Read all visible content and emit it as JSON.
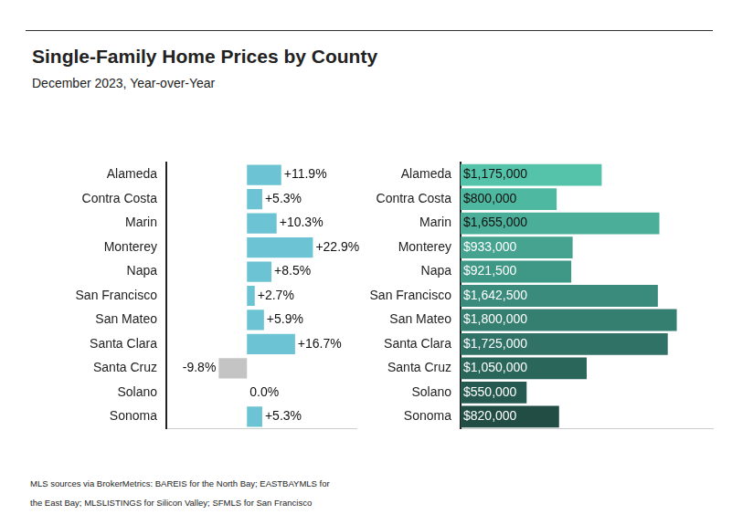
{
  "title": "Single-Family Home Prices by County",
  "subtitle": "December 2023, Year-over-Year",
  "source": "MLS sources via BrokerMetrics: BAREIS for the North Bay; EASTBAYMLS for the East Bay; MLSLISTINGS for Silicon Valley; SFMLS for San Francisco",
  "chart_data": [
    {
      "type": "bar",
      "orientation": "horizontal",
      "categories": [
        "Alameda",
        "Contra Costa",
        "Marin",
        "Monterey",
        "Napa",
        "San Francisco",
        "San Mateo",
        "Santa Clara",
        "Santa Cruz",
        "Solano",
        "Sonoma"
      ],
      "values": [
        11.9,
        5.3,
        10.3,
        22.9,
        8.5,
        2.7,
        5.9,
        16.7,
        -9.8,
        0,
        5.3
      ],
      "value_labels": [
        "+11.9%",
        "+5.3%",
        "+10.3%",
        "+22.9%",
        "+8.5%",
        "+2.7%",
        "+5.9%",
        "+16.7%",
        "-9.8%",
        "0.0%",
        "+5.3%"
      ],
      "colors": [
        "#6cc3d3",
        "#6cc3d3",
        "#6cc3d3",
        "#6cc3d3",
        "#6cc3d3",
        "#6cc3d3",
        "#6cc3d3",
        "#6cc3d3",
        "#c4c4c4",
        "#6cc3d3",
        "#6cc3d3"
      ],
      "xlim": [
        -28,
        38
      ],
      "grid": false,
      "tick_labels": "y",
      "data_labels": true
    },
    {
      "type": "bar",
      "orientation": "horizontal",
      "categories": [
        "Alameda",
        "Contra Costa",
        "Marin",
        "Monterey",
        "Napa",
        "San Francisco",
        "San Mateo",
        "Santa Clara",
        "Santa Cruz",
        "Solano",
        "Sonoma"
      ],
      "values": [
        1175000,
        800000,
        1655000,
        933000,
        921500,
        1642500,
        1800000,
        1725000,
        1050000,
        550000,
        820000
      ],
      "value_labels": [
        "$1,175,000",
        "$800,000",
        "$1,655,000",
        "$933,000",
        "$921,500",
        "$1,642,500",
        "$1,800,000",
        "$1,725,000",
        "$1,050,000",
        "$550,000",
        "$820,000"
      ],
      "colors": [
        "#55c3a9",
        "#4fb8a0",
        "#4aae98",
        "#45a38f",
        "#3f9786",
        "#3a8b7c",
        "#357f71",
        "#307266",
        "#2b665b",
        "#265a50",
        "#214d44"
      ],
      "xlim": [
        0,
        2100000
      ],
      "grid": false,
      "tick_labels": "y",
      "data_labels": true
    }
  ]
}
